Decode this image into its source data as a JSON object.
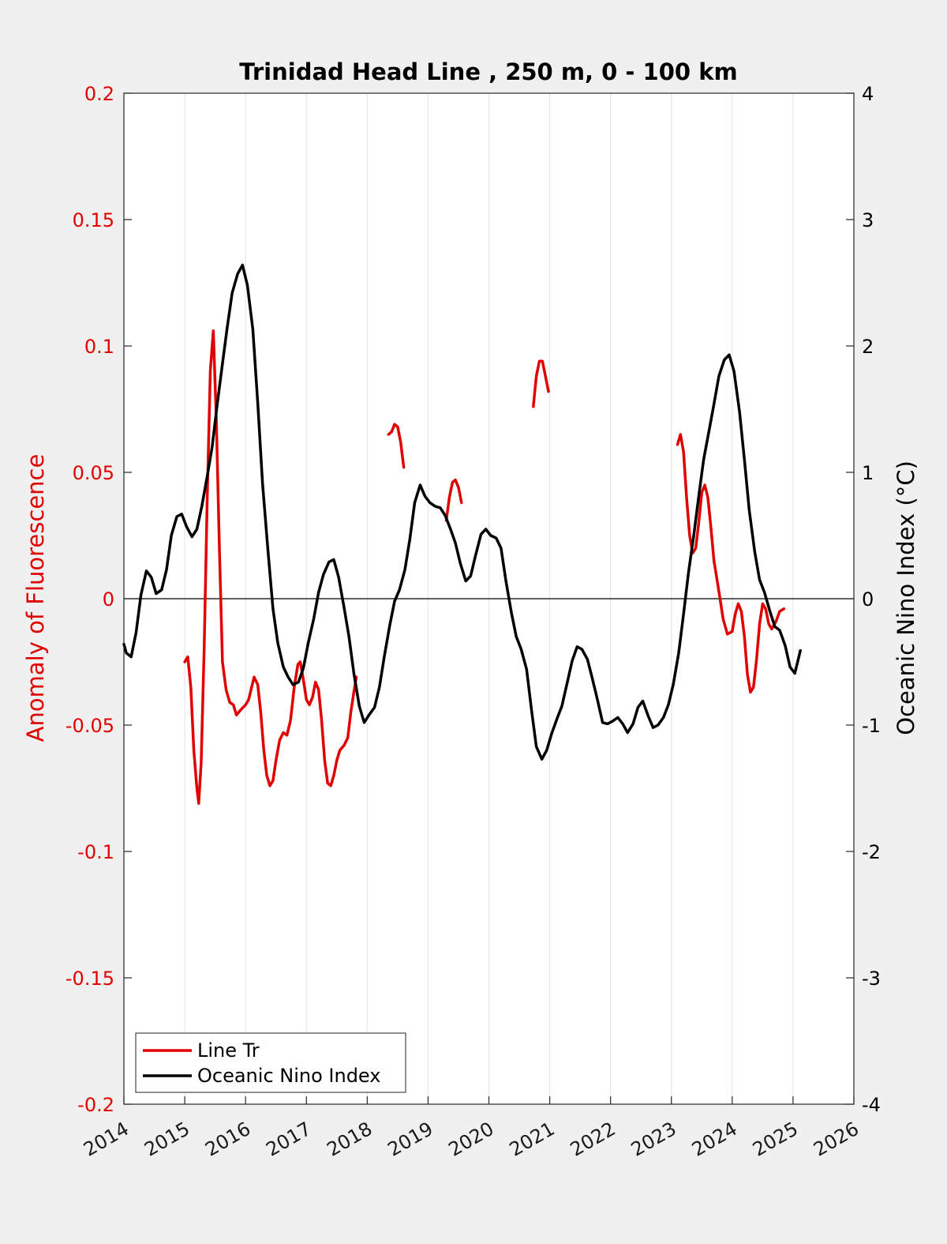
{
  "chart_data": {
    "type": "line",
    "title": "Trinidad Head Line , 250 m, 0 - 100 km",
    "xlim": [
      2014,
      2026
    ],
    "x_ticks": [
      "2014",
      "2015",
      "2016",
      "2017",
      "2018",
      "2019",
      "2020",
      "2021",
      "2022",
      "2023",
      "2024",
      "2025",
      "2026"
    ],
    "grid": "vertical lines at x ticks",
    "left_axis": {
      "label": "Anomaly of Fluorescence",
      "ylim": [
        -0.2,
        0.2
      ],
      "tick_labels": [
        "0.2",
        "0.15",
        "0.1",
        "0.05",
        "0",
        "-0.05",
        "-0.1",
        "-0.15",
        "-0.2"
      ],
      "color": "#e00000"
    },
    "right_axis": {
      "label": "Oceanic Nino Index (°C)",
      "ylim": [
        -4,
        4
      ],
      "tick_labels": [
        "4",
        "3",
        "2",
        "1",
        "0",
        "-1",
        "-2",
        "-3",
        "-4"
      ],
      "color": "#000000"
    },
    "zero_line": true,
    "legend": {
      "position": "bottom-left",
      "entries": [
        "Line Tr",
        "Oceanic Nino Index"
      ]
    },
    "series": [
      {
        "name": "Line Tr",
        "axis": "left",
        "color": "#e00000",
        "segments": [
          [
            [
              2015.0,
              -0.025
            ],
            [
              2015.05,
              -0.023
            ],
            [
              2015.1,
              -0.035
            ],
            [
              2015.15,
              -0.06
            ],
            [
              2015.2,
              -0.075
            ],
            [
              2015.23,
              -0.081
            ],
            [
              2015.27,
              -0.065
            ],
            [
              2015.32,
              -0.02
            ],
            [
              2015.37,
              0.04
            ],
            [
              2015.42,
              0.09
            ],
            [
              2015.47,
              0.106
            ],
            [
              2015.52,
              0.07
            ],
            [
              2015.57,
              0.02
            ],
            [
              2015.62,
              -0.025
            ],
            [
              2015.68,
              -0.036
            ],
            [
              2015.74,
              -0.041
            ],
            [
              2015.8,
              -0.042
            ],
            [
              2015.85,
              -0.046
            ],
            [
              2015.92,
              -0.044
            ],
            [
              2016.0,
              -0.042
            ],
            [
              2016.05,
              -0.04
            ],
            [
              2016.1,
              -0.035
            ],
            [
              2016.14,
              -0.031
            ],
            [
              2016.2,
              -0.034
            ],
            [
              2016.25,
              -0.045
            ],
            [
              2016.3,
              -0.06
            ],
            [
              2016.35,
              -0.07
            ],
            [
              2016.4,
              -0.074
            ],
            [
              2016.45,
              -0.072
            ],
            [
              2016.5,
              -0.064
            ],
            [
              2016.56,
              -0.056
            ],
            [
              2016.62,
              -0.053
            ],
            [
              2016.68,
              -0.054
            ],
            [
              2016.74,
              -0.048
            ],
            [
              2016.8,
              -0.035
            ],
            [
              2016.86,
              -0.026
            ],
            [
              2016.9,
              -0.025
            ],
            [
              2016.95,
              -0.032
            ],
            [
              2017.0,
              -0.04
            ],
            [
              2017.05,
              -0.042
            ],
            [
              2017.1,
              -0.039
            ],
            [
              2017.15,
              -0.033
            ],
            [
              2017.2,
              -0.036
            ],
            [
              2017.25,
              -0.048
            ],
            [
              2017.3,
              -0.064
            ],
            [
              2017.35,
              -0.073
            ],
            [
              2017.4,
              -0.074
            ],
            [
              2017.45,
              -0.07
            ],
            [
              2017.5,
              -0.064
            ],
            [
              2017.55,
              -0.06
            ],
            [
              2017.62,
              -0.058
            ],
            [
              2017.68,
              -0.055
            ],
            [
              2017.73,
              -0.045
            ],
            [
              2017.78,
              -0.037
            ],
            [
              2017.82,
              -0.031
            ]
          ],
          [
            [
              2018.35,
              0.065
            ],
            [
              2018.4,
              0.066
            ],
            [
              2018.45,
              0.069
            ],
            [
              2018.5,
              0.068
            ],
            [
              2018.55,
              0.062
            ],
            [
              2018.6,
              0.052
            ]
          ],
          [
            [
              2019.3,
              0.031
            ],
            [
              2019.35,
              0.04
            ],
            [
              2019.4,
              0.046
            ],
            [
              2019.45,
              0.047
            ],
            [
              2019.5,
              0.044
            ],
            [
              2019.55,
              0.038
            ]
          ],
          [
            [
              2020.73,
              0.076
            ],
            [
              2020.78,
              0.088
            ],
            [
              2020.83,
              0.094
            ],
            [
              2020.88,
              0.094
            ],
            [
              2020.93,
              0.088
            ],
            [
              2020.98,
              0.082
            ]
          ],
          [
            [
              2023.1,
              0.061
            ],
            [
              2023.15,
              0.065
            ],
            [
              2023.2,
              0.058
            ],
            [
              2023.25,
              0.04
            ],
            [
              2023.3,
              0.025
            ],
            [
              2023.35,
              0.018
            ],
            [
              2023.4,
              0.02
            ],
            [
              2023.45,
              0.03
            ],
            [
              2023.5,
              0.042
            ],
            [
              2023.55,
              0.045
            ],
            [
              2023.6,
              0.04
            ],
            [
              2023.65,
              0.028
            ],
            [
              2023.7,
              0.015
            ],
            [
              2023.78,
              0.003
            ],
            [
              2023.85,
              -0.008
            ],
            [
              2023.92,
              -0.014
            ],
            [
              2024.0,
              -0.013
            ],
            [
              2024.05,
              -0.006
            ],
            [
              2024.1,
              -0.002
            ],
            [
              2024.15,
              -0.005
            ],
            [
              2024.2,
              -0.015
            ],
            [
              2024.25,
              -0.03
            ],
            [
              2024.3,
              -0.037
            ],
            [
              2024.35,
              -0.035
            ],
            [
              2024.4,
              -0.024
            ],
            [
              2024.45,
              -0.01
            ],
            [
              2024.5,
              -0.002
            ],
            [
              2024.55,
              -0.004
            ],
            [
              2024.6,
              -0.01
            ],
            [
              2024.65,
              -0.012
            ],
            [
              2024.72,
              -0.009
            ],
            [
              2024.78,
              -0.005
            ],
            [
              2024.85,
              -0.004
            ]
          ]
        ]
      },
      {
        "name": "Oceanic Nino Index",
        "axis": "right",
        "color": "#000000",
        "segments": [
          [
            [
              2014.0,
              -0.36
            ],
            [
              2014.04,
              -0.43
            ],
            [
              2014.12,
              -0.46
            ],
            [
              2014.2,
              -0.27
            ],
            [
              2014.28,
              0.03
            ],
            [
              2014.37,
              0.22
            ],
            [
              2014.45,
              0.17
            ],
            [
              2014.53,
              0.04
            ],
            [
              2014.62,
              0.07
            ],
            [
              2014.7,
              0.23
            ],
            [
              2014.78,
              0.5
            ],
            [
              2014.87,
              0.65
            ],
            [
              2014.95,
              0.67
            ],
            [
              2015.03,
              0.57
            ],
            [
              2015.12,
              0.49
            ],
            [
              2015.2,
              0.55
            ],
            [
              2015.28,
              0.73
            ],
            [
              2015.37,
              0.97
            ],
            [
              2015.45,
              1.2
            ],
            [
              2015.53,
              1.52
            ],
            [
              2015.62,
              1.86
            ],
            [
              2015.7,
              2.15
            ],
            [
              2015.78,
              2.42
            ],
            [
              2015.87,
              2.57
            ],
            [
              2015.95,
              2.64
            ],
            [
              2016.03,
              2.48
            ],
            [
              2016.12,
              2.13
            ],
            [
              2016.2,
              1.55
            ],
            [
              2016.28,
              0.91
            ],
            [
              2016.37,
              0.37
            ],
            [
              2016.45,
              -0.08
            ],
            [
              2016.53,
              -0.35
            ],
            [
              2016.62,
              -0.54
            ],
            [
              2016.7,
              -0.62
            ],
            [
              2016.78,
              -0.68
            ],
            [
              2016.87,
              -0.66
            ],
            [
              2016.95,
              -0.55
            ],
            [
              2017.03,
              -0.35
            ],
            [
              2017.12,
              -0.16
            ],
            [
              2017.2,
              0.05
            ],
            [
              2017.28,
              0.19
            ],
            [
              2017.37,
              0.29
            ],
            [
              2017.45,
              0.31
            ],
            [
              2017.53,
              0.17
            ],
            [
              2017.62,
              -0.07
            ],
            [
              2017.7,
              -0.3
            ],
            [
              2017.78,
              -0.59
            ],
            [
              2017.87,
              -0.85
            ],
            [
              2017.95,
              -0.98
            ],
            [
              2018.03,
              -0.92
            ],
            [
              2018.12,
              -0.86
            ],
            [
              2018.2,
              -0.7
            ],
            [
              2018.28,
              -0.46
            ],
            [
              2018.37,
              -0.21
            ],
            [
              2018.45,
              -0.02
            ],
            [
              2018.53,
              0.07
            ],
            [
              2018.62,
              0.23
            ],
            [
              2018.7,
              0.47
            ],
            [
              2018.78,
              0.76
            ],
            [
              2018.87,
              0.9
            ],
            [
              2018.95,
              0.81
            ],
            [
              2019.03,
              0.76
            ],
            [
              2019.12,
              0.73
            ],
            [
              2019.2,
              0.72
            ],
            [
              2019.28,
              0.66
            ],
            [
              2019.37,
              0.55
            ],
            [
              2019.45,
              0.44
            ],
            [
              2019.53,
              0.28
            ],
            [
              2019.62,
              0.14
            ],
            [
              2019.7,
              0.18
            ],
            [
              2019.78,
              0.34
            ],
            [
              2019.87,
              0.51
            ],
            [
              2019.95,
              0.55
            ],
            [
              2020.03,
              0.5
            ],
            [
              2020.12,
              0.48
            ],
            [
              2020.2,
              0.4
            ],
            [
              2020.28,
              0.14
            ],
            [
              2020.37,
              -0.11
            ],
            [
              2020.45,
              -0.3
            ],
            [
              2020.53,
              -0.4
            ],
            [
              2020.62,
              -0.56
            ],
            [
              2020.7,
              -0.88
            ],
            [
              2020.78,
              -1.17
            ],
            [
              2020.87,
              -1.27
            ],
            [
              2020.95,
              -1.2
            ],
            [
              2021.03,
              -1.07
            ],
            [
              2021.12,
              -0.95
            ],
            [
              2021.2,
              -0.85
            ],
            [
              2021.28,
              -0.68
            ],
            [
              2021.37,
              -0.49
            ],
            [
              2021.45,
              -0.38
            ],
            [
              2021.53,
              -0.4
            ],
            [
              2021.62,
              -0.48
            ],
            [
              2021.7,
              -0.63
            ],
            [
              2021.78,
              -0.79
            ],
            [
              2021.87,
              -0.98
            ],
            [
              2021.95,
              -0.99
            ],
            [
              2022.03,
              -0.97
            ],
            [
              2022.12,
              -0.94
            ],
            [
              2022.2,
              -0.99
            ],
            [
              2022.28,
              -1.06
            ],
            [
              2022.37,
              -0.99
            ],
            [
              2022.45,
              -0.86
            ],
            [
              2022.53,
              -0.81
            ],
            [
              2022.62,
              -0.93
            ],
            [
              2022.7,
              -1.02
            ],
            [
              2022.78,
              -1.0
            ],
            [
              2022.87,
              -0.94
            ],
            [
              2022.95,
              -0.84
            ],
            [
              2023.03,
              -0.68
            ],
            [
              2023.12,
              -0.43
            ],
            [
              2023.2,
              -0.12
            ],
            [
              2023.28,
              0.2
            ],
            [
              2023.37,
              0.51
            ],
            [
              2023.45,
              0.81
            ],
            [
              2023.53,
              1.1
            ],
            [
              2023.62,
              1.33
            ],
            [
              2023.7,
              1.54
            ],
            [
              2023.78,
              1.76
            ],
            [
              2023.87,
              1.89
            ],
            [
              2023.95,
              1.93
            ],
            [
              2024.03,
              1.8
            ],
            [
              2024.12,
              1.48
            ],
            [
              2024.2,
              1.1
            ],
            [
              2024.28,
              0.7
            ],
            [
              2024.37,
              0.37
            ],
            [
              2024.45,
              0.15
            ],
            [
              2024.53,
              0.05
            ],
            [
              2024.62,
              -0.1
            ],
            [
              2024.7,
              -0.22
            ],
            [
              2024.78,
              -0.25
            ],
            [
              2024.87,
              -0.37
            ],
            [
              2024.95,
              -0.54
            ],
            [
              2025.03,
              -0.59
            ],
            [
              2025.12,
              -0.41
            ]
          ]
        ]
      }
    ]
  }
}
